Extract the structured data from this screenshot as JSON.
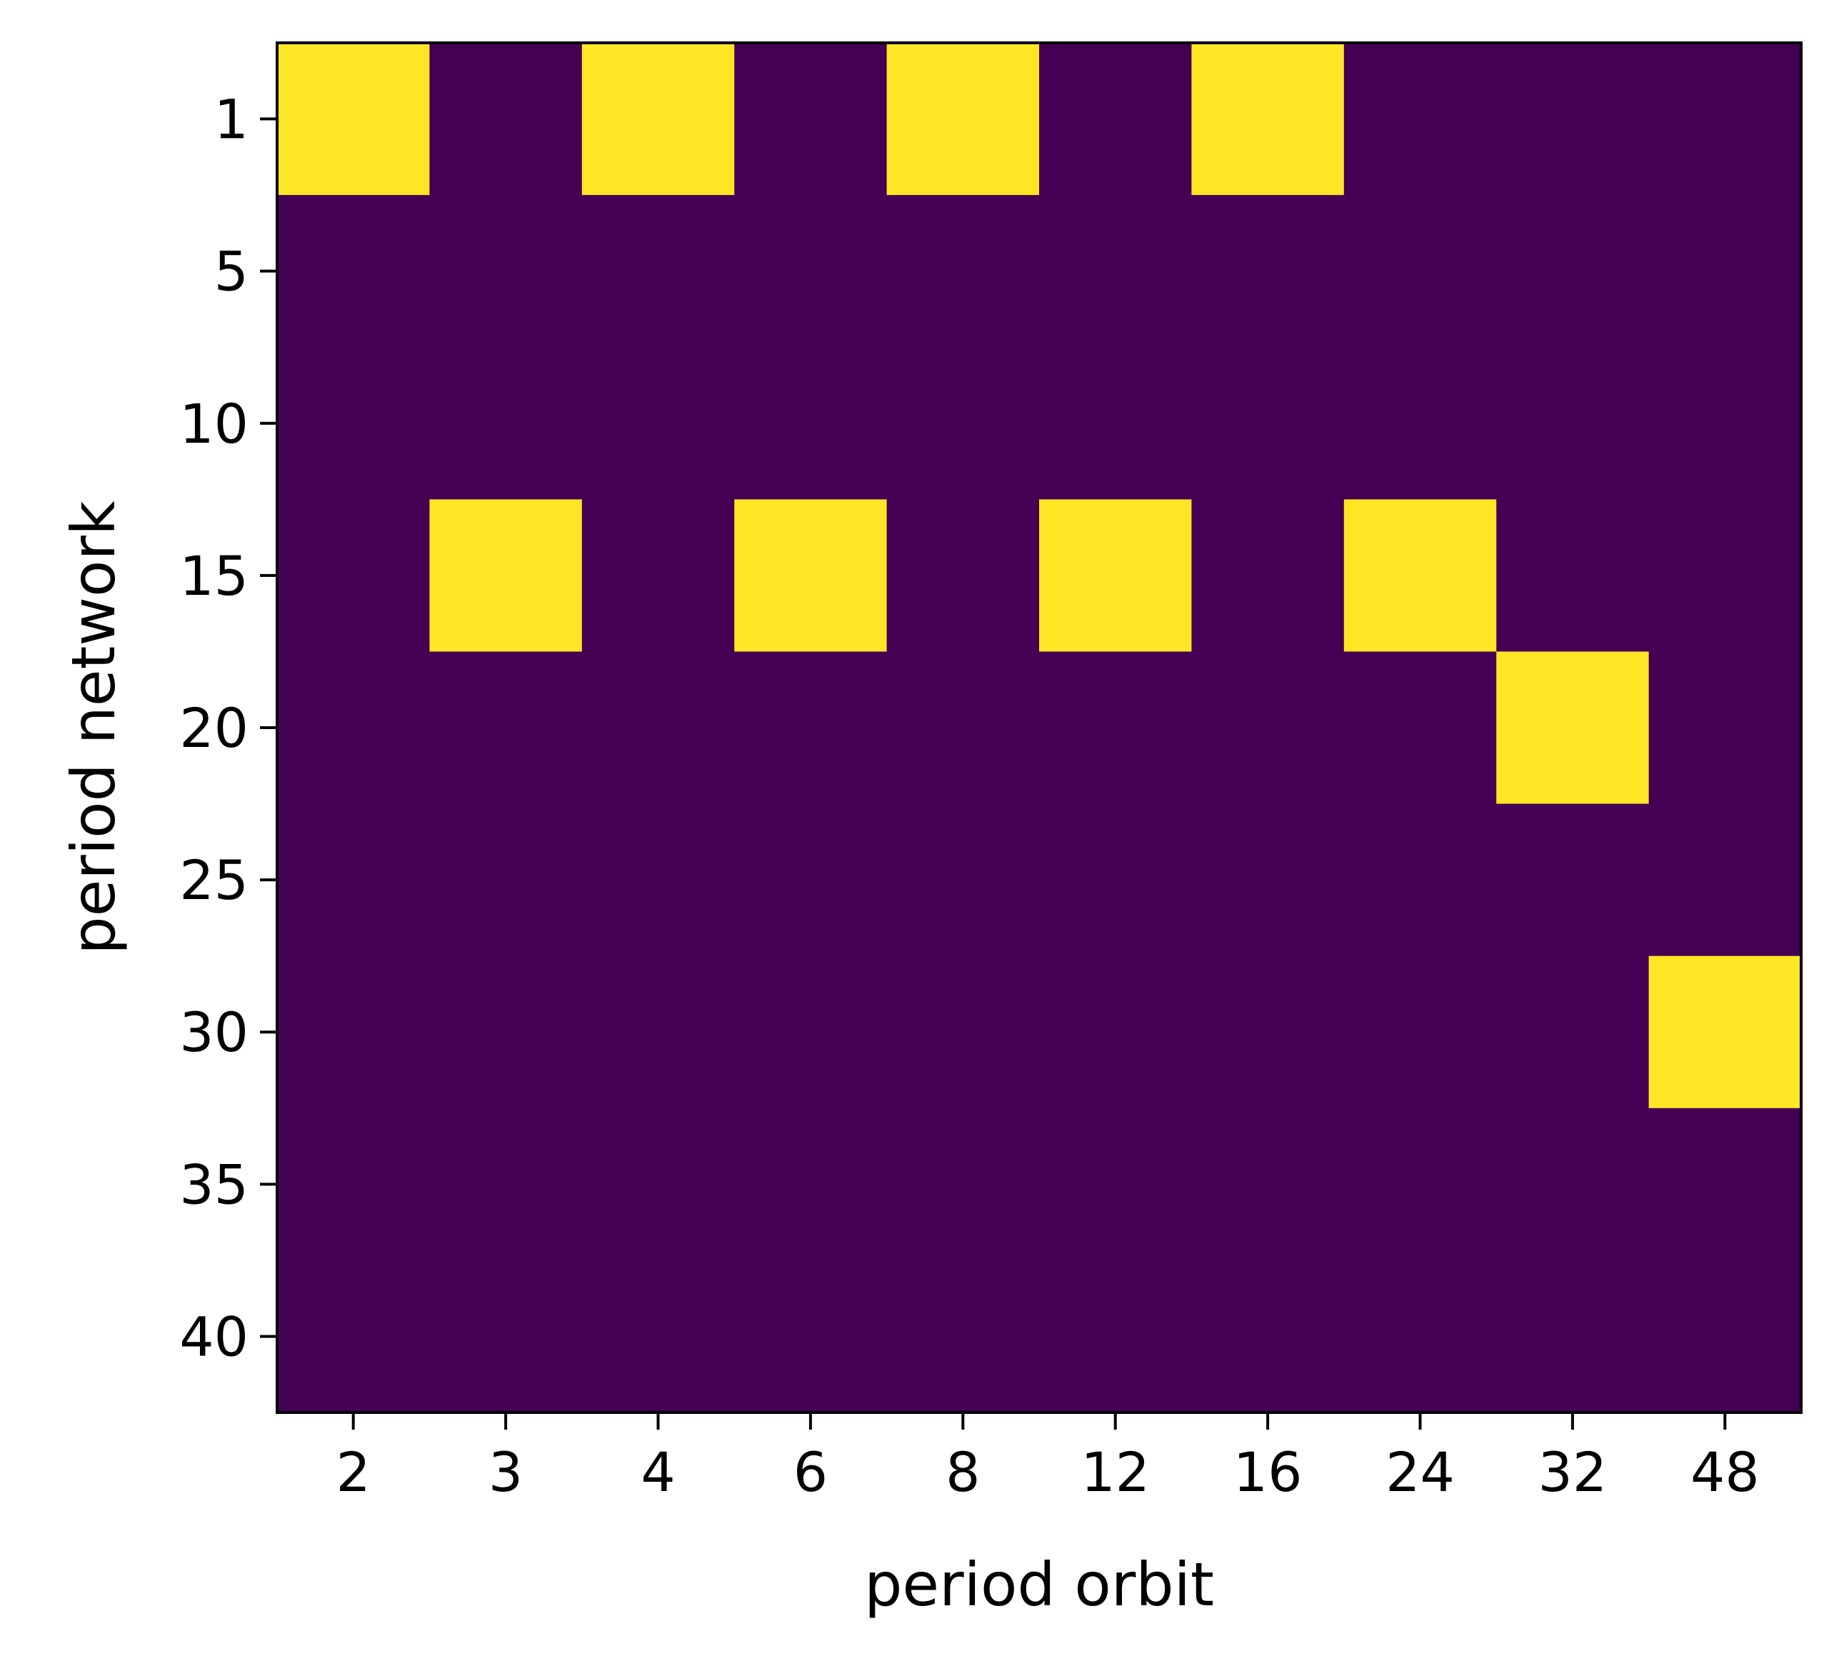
{
  "chart_data": {
    "type": "heatmap",
    "title": "",
    "xlabel": "period orbit",
    "ylabel": "period network",
    "x_categories": [
      "2",
      "3",
      "4",
      "6",
      "8",
      "12",
      "16",
      "24",
      "32",
      "48"
    ],
    "y_tick_labels": [
      "1",
      "5",
      "10",
      "15",
      "20",
      "25",
      "30",
      "35",
      "40"
    ],
    "y_rows": [
      "1",
      "5",
      "10",
      "15",
      "20",
      "25",
      "30",
      "35",
      "40"
    ],
    "values": [
      [
        1,
        0,
        1,
        0,
        1,
        0,
        1,
        0,
        0,
        0
      ],
      [
        0,
        0,
        0,
        0,
        0,
        0,
        0,
        0,
        0,
        0
      ],
      [
        0,
        0,
        0,
        0,
        0,
        0,
        0,
        0,
        0,
        0
      ],
      [
        0,
        1,
        0,
        1,
        0,
        1,
        0,
        1,
        0,
        0
      ],
      [
        0,
        0,
        0,
        0,
        0,
        0,
        0,
        0,
        1,
        0
      ],
      [
        0,
        0,
        0,
        0,
        0,
        0,
        0,
        0,
        0,
        0
      ],
      [
        0,
        0,
        0,
        0,
        0,
        0,
        0,
        0,
        0,
        1
      ],
      [
        0,
        0,
        0,
        0,
        0,
        0,
        0,
        0,
        0,
        0
      ],
      [
        0,
        0,
        0,
        0,
        0,
        0,
        0,
        0,
        0,
        0
      ]
    ],
    "colormap": "viridis",
    "color_low": "#440154",
    "color_high": "#fde725",
    "grid": false,
    "legend": "none"
  }
}
